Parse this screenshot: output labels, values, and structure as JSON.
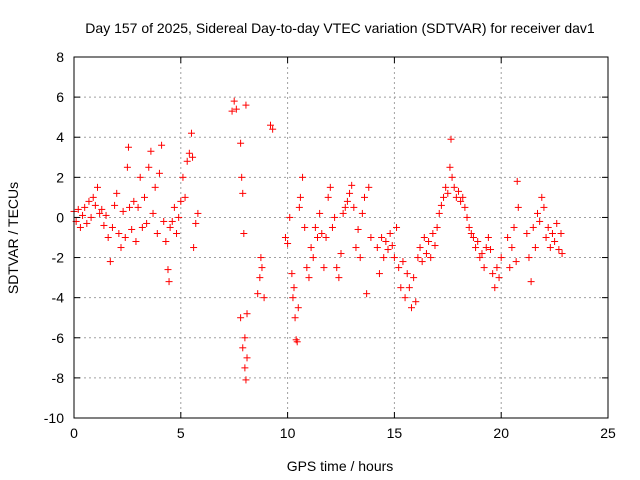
{
  "chart_data": {
    "type": "scatter",
    "title": "Day 157 of 2025, Sidereal Day-to-day VTEC variation (SDTVAR) for receiver dav1",
    "xlabel": "GPS time / hours",
    "ylabel": "SDTVAR / TECUs",
    "xlim": [
      0,
      25
    ],
    "ylim": [
      -10,
      8
    ],
    "xticks": [
      0,
      5,
      10,
      15,
      20,
      25
    ],
    "yticks": [
      -10,
      -8,
      -6,
      -4,
      -2,
      0,
      2,
      4,
      6,
      8
    ],
    "grid": true,
    "marker": "+",
    "marker_color": "#ff0000",
    "series": [
      {
        "name": "SDTVAR",
        "points": [
          [
            0.0,
            0.3
          ],
          [
            0.1,
            -0.2
          ],
          [
            0.2,
            0.4
          ],
          [
            0.3,
            -0.5
          ],
          [
            0.4,
            0.1
          ],
          [
            0.5,
            0.5
          ],
          [
            0.6,
            -0.3
          ],
          [
            0.7,
            0.8
          ],
          [
            0.8,
            0.0
          ],
          [
            0.9,
            1.0
          ],
          [
            1.0,
            0.6
          ],
          [
            1.1,
            1.5
          ],
          [
            1.2,
            0.2
          ],
          [
            1.3,
            0.4
          ],
          [
            1.4,
            -0.4
          ],
          [
            1.5,
            0.1
          ],
          [
            1.6,
            -1.0
          ],
          [
            1.7,
            -2.2
          ],
          [
            1.8,
            -0.5
          ],
          [
            1.9,
            0.6
          ],
          [
            2.0,
            1.2
          ],
          [
            2.1,
            -0.8
          ],
          [
            2.2,
            -1.5
          ],
          [
            2.3,
            0.3
          ],
          [
            2.4,
            -1.0
          ],
          [
            2.5,
            2.5
          ],
          [
            2.55,
            3.5
          ],
          [
            2.6,
            0.5
          ],
          [
            2.7,
            -0.6
          ],
          [
            2.8,
            0.8
          ],
          [
            2.9,
            -1.2
          ],
          [
            3.0,
            0.5
          ],
          [
            3.1,
            2.0
          ],
          [
            3.2,
            -0.5
          ],
          [
            3.3,
            1.0
          ],
          [
            3.4,
            -0.3
          ],
          [
            3.5,
            2.5
          ],
          [
            3.6,
            3.3
          ],
          [
            3.7,
            0.2
          ],
          [
            3.8,
            1.5
          ],
          [
            3.9,
            -0.8
          ],
          [
            4.0,
            2.2
          ],
          [
            4.1,
            3.6
          ],
          [
            4.2,
            -0.2
          ],
          [
            4.3,
            -1.2
          ],
          [
            4.4,
            -2.6
          ],
          [
            4.45,
            -3.2
          ],
          [
            4.5,
            -0.5
          ],
          [
            4.6,
            -0.2
          ],
          [
            4.7,
            0.5
          ],
          [
            4.8,
            -0.8
          ],
          [
            4.9,
            0.0
          ],
          [
            5.0,
            0.8
          ],
          [
            5.1,
            2.0
          ],
          [
            5.2,
            1.0
          ],
          [
            5.3,
            2.8
          ],
          [
            5.4,
            3.2
          ],
          [
            5.5,
            4.2
          ],
          [
            5.55,
            3.0
          ],
          [
            5.6,
            -1.5
          ],
          [
            5.7,
            -0.3
          ],
          [
            5.8,
            0.2
          ],
          [
            7.4,
            5.3
          ],
          [
            7.5,
            5.8
          ],
          [
            7.6,
            5.4
          ],
          [
            7.8,
            3.7
          ],
          [
            7.85,
            2.0
          ],
          [
            7.9,
            1.2
          ],
          [
            7.95,
            -0.8
          ],
          [
            7.8,
            -5.0
          ],
          [
            7.9,
            -6.5
          ],
          [
            8.0,
            -7.5
          ],
          [
            8.05,
            -8.1
          ],
          [
            8.1,
            -7.0
          ],
          [
            8.0,
            -6.0
          ],
          [
            8.1,
            -4.8
          ],
          [
            8.05,
            5.6
          ],
          [
            8.6,
            -3.8
          ],
          [
            8.7,
            -3.0
          ],
          [
            8.8,
            -2.5
          ],
          [
            8.9,
            -4.0
          ],
          [
            8.75,
            -2.0
          ],
          [
            9.2,
            4.6
          ],
          [
            9.3,
            4.4
          ],
          [
            9.9,
            -1.0
          ],
          [
            10.0,
            -1.3
          ],
          [
            10.1,
            0.0
          ],
          [
            10.2,
            -2.8
          ],
          [
            10.25,
            -4.0
          ],
          [
            10.3,
            -3.5
          ],
          [
            10.35,
            -5.0
          ],
          [
            10.4,
            -6.1
          ],
          [
            10.45,
            -6.2
          ],
          [
            10.5,
            -4.5
          ],
          [
            10.55,
            0.5
          ],
          [
            10.6,
            1.0
          ],
          [
            10.7,
            2.0
          ],
          [
            10.8,
            -0.5
          ],
          [
            10.9,
            -2.5
          ],
          [
            11.0,
            -3.0
          ],
          [
            11.1,
            -1.5
          ],
          [
            11.2,
            -2.0
          ],
          [
            11.3,
            -0.5
          ],
          [
            11.4,
            -1.0
          ],
          [
            11.5,
            0.2
          ],
          [
            11.6,
            -0.8
          ],
          [
            11.7,
            -2.5
          ],
          [
            11.8,
            -1.0
          ],
          [
            11.9,
            1.0
          ],
          [
            12.0,
            1.5
          ],
          [
            12.1,
            -0.5
          ],
          [
            12.2,
            0.0
          ],
          [
            12.3,
            -2.5
          ],
          [
            12.4,
            -3.0
          ],
          [
            12.5,
            -1.8
          ],
          [
            12.6,
            0.2
          ],
          [
            12.7,
            0.5
          ],
          [
            12.8,
            0.8
          ],
          [
            12.9,
            1.2
          ],
          [
            13.0,
            1.6
          ],
          [
            13.1,
            0.5
          ],
          [
            13.2,
            -1.5
          ],
          [
            13.3,
            -0.6
          ],
          [
            13.4,
            -2.0
          ],
          [
            13.5,
            0.2
          ],
          [
            13.6,
            1.0
          ],
          [
            13.7,
            -3.8
          ],
          [
            13.8,
            1.5
          ],
          [
            13.9,
            -1.0
          ],
          [
            14.2,
            -1.5
          ],
          [
            14.3,
            -2.8
          ],
          [
            14.4,
            -1.0
          ],
          [
            14.5,
            -2.0
          ],
          [
            14.6,
            -1.2
          ],
          [
            14.7,
            -1.6
          ],
          [
            14.8,
            -0.8
          ],
          [
            14.9,
            -1.4
          ],
          [
            15.0,
            -2.0
          ],
          [
            15.1,
            -0.5
          ],
          [
            15.2,
            -2.5
          ],
          [
            15.3,
            -3.5
          ],
          [
            15.4,
            -2.2
          ],
          [
            15.5,
            -4.0
          ],
          [
            15.6,
            -2.8
          ],
          [
            15.7,
            -3.5
          ],
          [
            15.8,
            -4.5
          ],
          [
            15.9,
            -3.0
          ],
          [
            16.0,
            -4.2
          ],
          [
            16.1,
            -2.0
          ],
          [
            16.2,
            -1.5
          ],
          [
            16.3,
            -2.2
          ],
          [
            16.4,
            -1.0
          ],
          [
            16.5,
            -1.8
          ],
          [
            16.6,
            -1.2
          ],
          [
            16.7,
            -2.0
          ],
          [
            16.8,
            -0.8
          ],
          [
            16.9,
            -1.4
          ],
          [
            17.0,
            -0.5
          ],
          [
            17.1,
            0.2
          ],
          [
            17.2,
            0.6
          ],
          [
            17.3,
            1.0
          ],
          [
            17.4,
            1.5
          ],
          [
            17.5,
            1.2
          ],
          [
            17.6,
            2.5
          ],
          [
            17.65,
            3.9
          ],
          [
            17.7,
            2.0
          ],
          [
            17.8,
            1.5
          ],
          [
            17.9,
            1.0
          ],
          [
            18.0,
            1.3
          ],
          [
            18.1,
            0.8
          ],
          [
            18.2,
            1.0
          ],
          [
            18.3,
            0.5
          ],
          [
            18.4,
            0.0
          ],
          [
            18.5,
            -0.5
          ],
          [
            18.6,
            -0.8
          ],
          [
            18.7,
            -1.0
          ],
          [
            18.8,
            -1.5
          ],
          [
            18.9,
            -1.2
          ],
          [
            19.0,
            -2.0
          ],
          [
            19.1,
            -1.8
          ],
          [
            19.2,
            -2.5
          ],
          [
            19.3,
            -1.5
          ],
          [
            19.4,
            -1.0
          ],
          [
            19.5,
            -1.6
          ],
          [
            19.6,
            -2.8
          ],
          [
            19.7,
            -3.5
          ],
          [
            19.8,
            -2.5
          ],
          [
            19.9,
            -3.0
          ],
          [
            20.0,
            -2.0
          ],
          [
            20.3,
            -1.0
          ],
          [
            20.4,
            -2.5
          ],
          [
            20.5,
            -1.5
          ],
          [
            20.6,
            -0.5
          ],
          [
            20.7,
            -2.2
          ],
          [
            20.75,
            1.8
          ],
          [
            20.8,
            0.5
          ],
          [
            21.2,
            -0.8
          ],
          [
            21.3,
            -2.0
          ],
          [
            21.4,
            -3.2
          ],
          [
            21.5,
            -0.5
          ],
          [
            21.6,
            -1.5
          ],
          [
            21.7,
            0.2
          ],
          [
            21.8,
            -0.2
          ],
          [
            21.9,
            1.0
          ],
          [
            22.0,
            0.5
          ],
          [
            22.1,
            -1.0
          ],
          [
            22.2,
            -0.5
          ],
          [
            22.3,
            -1.5
          ],
          [
            22.4,
            -0.8
          ],
          [
            22.5,
            -1.2
          ],
          [
            22.6,
            -0.3
          ],
          [
            22.7,
            -1.6
          ],
          [
            22.8,
            -0.8
          ],
          [
            22.85,
            -1.8
          ]
        ]
      }
    ]
  }
}
